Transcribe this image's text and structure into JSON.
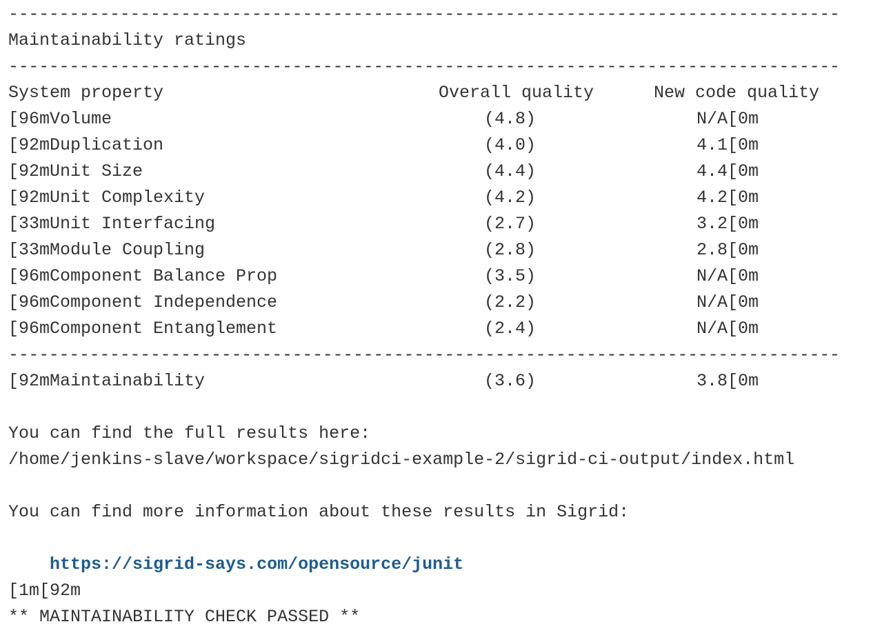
{
  "rule": "-------------------------------------------------------------------------------------------",
  "section_title": "Maintainability ratings",
  "table": {
    "headers": {
      "property": "System property",
      "overall": "Overall quality",
      "new_code": "New code quality"
    },
    "rows": [
      {
        "property": "[96mVolume",
        "overall": "(4.8)",
        "new_code": "N/A[0m"
      },
      {
        "property": "[92mDuplication",
        "overall": "(4.0)",
        "new_code": "4.1[0m"
      },
      {
        "property": "[92mUnit Size",
        "overall": "(4.4)",
        "new_code": "4.4[0m"
      },
      {
        "property": "[92mUnit Complexity",
        "overall": "(4.2)",
        "new_code": "4.2[0m"
      },
      {
        "property": "[33mUnit Interfacing",
        "overall": "(2.7)",
        "new_code": "3.2[0m"
      },
      {
        "property": "[33mModule Coupling",
        "overall": "(2.8)",
        "new_code": "2.8[0m"
      },
      {
        "property": "[96mComponent Balance Prop",
        "overall": "(3.5)",
        "new_code": "N/A[0m"
      },
      {
        "property": "[96mComponent Independence",
        "overall": "(2.2)",
        "new_code": "N/A[0m"
      },
      {
        "property": "[96mComponent Entanglement",
        "overall": "(2.4)",
        "new_code": "N/A[0m"
      }
    ],
    "total": {
      "property": "[92mMaintainability",
      "overall": "(3.6)",
      "new_code": "3.8[0m"
    }
  },
  "results": {
    "intro": "You can find the full results here:",
    "path": "/home/jenkins-slave/workspace/sigridci-example-2/sigrid-ci-output/index.html"
  },
  "sigrid": {
    "intro": "You can find more information about these results in Sigrid:",
    "link": "https://sigrid-says.com/opensource/junit"
  },
  "status": {
    "escape": "[1m[92m",
    "message": "** MAINTAINABILITY CHECK PASSED **"
  }
}
